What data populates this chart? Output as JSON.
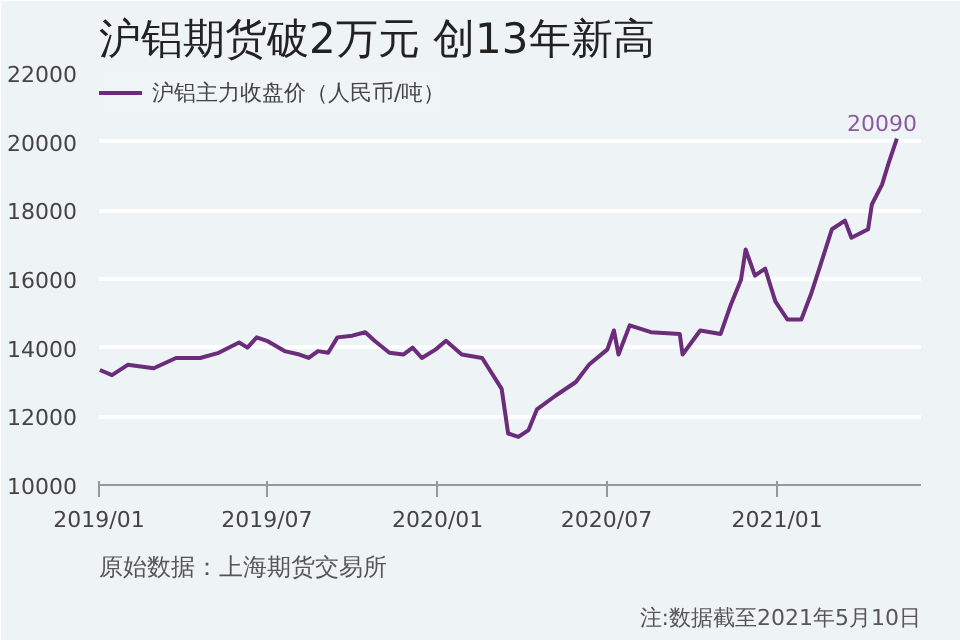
{
  "chart_data": {
    "type": "line",
    "title": "沪铝期货破2万元 创13年新高",
    "x": [
      "2019-01-02",
      "2019-01-15",
      "2019-02-01",
      "2019-03-01",
      "2019-03-25",
      "2019-04-20",
      "2019-05-10",
      "2019-06-01",
      "2019-06-10",
      "2019-06-20",
      "2019-07-01",
      "2019-07-20",
      "2019-08-05",
      "2019-08-15",
      "2019-08-25",
      "2019-09-05",
      "2019-09-15",
      "2019-10-01",
      "2019-10-15",
      "2019-10-25",
      "2019-11-10",
      "2019-11-25",
      "2019-12-05",
      "2019-12-15",
      "2019-12-30",
      "2020-01-10",
      "2020-01-27",
      "2020-02-18",
      "2020-03-10",
      "2020-03-17",
      "2020-03-28",
      "2020-04-08",
      "2020-04-17",
      "2020-05-07",
      "2020-05-29",
      "2020-06-12",
      "2020-07-02",
      "2020-07-09",
      "2020-07-14",
      "2020-07-26",
      "2020-08-18",
      "2020-09-18",
      "2020-09-21",
      "2020-10-10",
      "2020-11-01",
      "2020-11-12",
      "2020-11-23",
      "2020-11-28",
      "2020-12-08",
      "2020-12-19",
      "2020-12-30",
      "2021-01-12",
      "2021-01-27",
      "2021-02-07",
      "2021-02-22",
      "2021-03-01",
      "2021-03-15",
      "2021-03-22",
      "2021-04-09",
      "2021-04-13",
      "2021-04-24",
      "2021-05-01",
      "2021-05-10"
    ],
    "series": [
      {
        "name": "沪铝主力收盘价（人民币/吨）",
        "color": "#6b2c7a",
        "values": [
          13350,
          13200,
          13500,
          13400,
          13700,
          13700,
          13850,
          14150,
          14000,
          14300,
          14200,
          13900,
          13800,
          13700,
          13900,
          13850,
          14300,
          14350,
          14450,
          14200,
          13850,
          13800,
          14000,
          13700,
          13950,
          14200,
          13800,
          13700,
          12800,
          11500,
          11400,
          11600,
          12200,
          12600,
          13000,
          13500,
          13950,
          14500,
          13800,
          14650,
          14450,
          14400,
          13800,
          14500,
          14400,
          15250,
          15980,
          16860,
          16100,
          16300,
          15350,
          14820,
          14820,
          15600,
          16860,
          17450,
          17700,
          17200,
          17450,
          18170,
          18750,
          19370,
          20090
        ]
      }
    ],
    "xlim": [
      "2019-01-01",
      "2021-06-05"
    ],
    "xticks": [
      {
        "value": "2019-01-01",
        "label": "2019/01"
      },
      {
        "value": "2019-07-01",
        "label": "2019/07"
      },
      {
        "value": "2020-01-01",
        "label": "2020/01"
      },
      {
        "value": "2020-07-01",
        "label": "2020/07"
      },
      {
        "value": "2021-01-01",
        "label": "2021/01"
      }
    ],
    "ylim": [
      10000,
      22000
    ],
    "yticks": [
      10000,
      12000,
      14000,
      16000,
      18000,
      20000,
      22000
    ],
    "grid": "y",
    "legend": "top left",
    "annotations": [
      {
        "text": "20090",
        "x": "2021-05-10",
        "y": 20090
      },
      "原始数据：上海期货交易所",
      "注:数据截至2021年5月10日"
    ]
  }
}
